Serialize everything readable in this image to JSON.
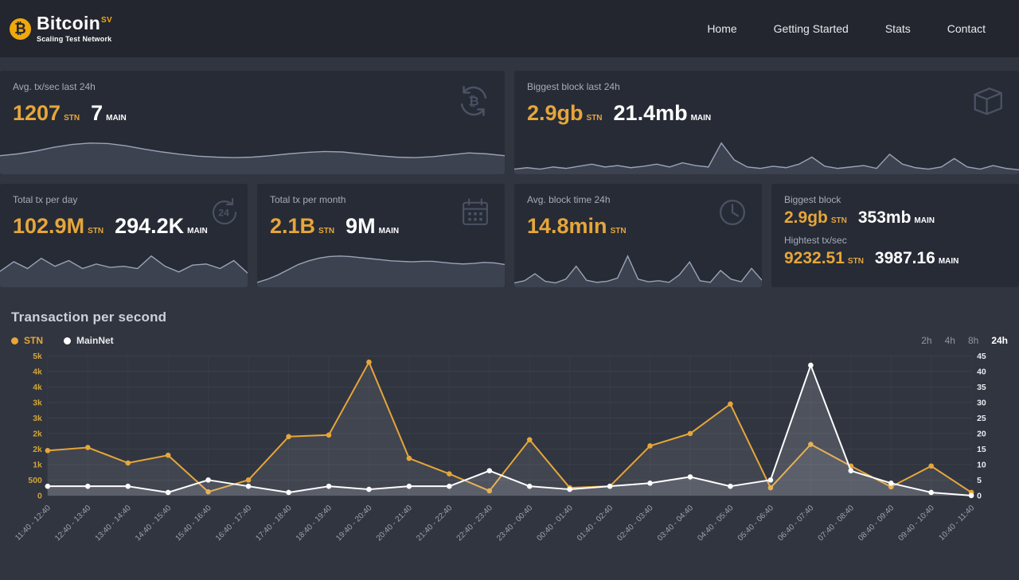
{
  "header": {
    "logo": {
      "coin_symbol": "₿",
      "name": "Bitcoin",
      "sv": "SV",
      "subtitle": "Scaling Test Network"
    },
    "nav": [
      {
        "label": "Home"
      },
      {
        "label": "Getting Started"
      },
      {
        "label": "Stats"
      },
      {
        "label": "Contact"
      }
    ]
  },
  "units": {
    "stn": "STN",
    "main": "MAIN"
  },
  "colors": {
    "accent": "#e6a63a",
    "main_series": "#ffffff",
    "header_bg": "#23262e",
    "page_bg": "#31353f",
    "card_bg": "#262b36",
    "sparkline": "#9aa3b6"
  },
  "cards": {
    "avg_tx_sec": {
      "label": "Avg. tx/sec last 24h",
      "stn_value": "1207",
      "main_value": "7",
      "icon": "refresh-bitcoin-icon",
      "sparkline": [
        36,
        40,
        46,
        54,
        60,
        63,
        62,
        57,
        50,
        44,
        39,
        35,
        33,
        32,
        33,
        36,
        40,
        43,
        45,
        44,
        40,
        36,
        33,
        32,
        34,
        38,
        42,
        40,
        36
      ]
    },
    "biggest_block_24h": {
      "label": "Biggest block last 24h",
      "stn_value": "2.9gb",
      "main_value": "21.4mb",
      "icon": "cube-icon",
      "sparkline": [
        5,
        7,
        5,
        8,
        6,
        9,
        12,
        8,
        10,
        7,
        9,
        12,
        8,
        14,
        10,
        8,
        42,
        18,
        8,
        6,
        9,
        7,
        12,
        22,
        9,
        6,
        8,
        10,
        6,
        26,
        12,
        7,
        5,
        8,
        20,
        8,
        5,
        10,
        6,
        4
      ]
    },
    "total_tx_day": {
      "label": "Total tx per day",
      "stn_value": "102.9M",
      "main_value": "294.2K",
      "icon": "24-hours-icon",
      "sparkline": [
        25,
        42,
        30,
        48,
        34,
        44,
        30,
        38,
        32,
        34,
        30,
        52,
        34,
        24,
        36,
        38,
        30,
        44,
        22
      ]
    },
    "total_tx_month": {
      "label": "Total tx per month",
      "stn_value": "2.1B",
      "main_value": "9M",
      "icon": "calendar-icon",
      "sparkline": [
        6,
        12,
        20,
        30,
        40,
        47,
        52,
        55,
        56,
        55,
        53,
        51,
        49,
        47,
        46,
        45,
        46,
        46,
        44,
        42,
        41,
        42,
        44,
        43,
        40
      ]
    },
    "avg_block_time": {
      "label": "Avg. block time 24h",
      "stn_value": "14.8min",
      "icon": "clock-icon",
      "sparkline": [
        5,
        9,
        22,
        8,
        5,
        12,
        36,
        10,
        6,
        8,
        14,
        55,
        12,
        7,
        9,
        6,
        20,
        44,
        9,
        6,
        28,
        12,
        7,
        32,
        10
      ]
    },
    "biggest_block": {
      "label": "Biggest block",
      "stn_value": "2.9gb",
      "main_value": "353mb"
    },
    "highest_tx_sec": {
      "label": "Hightest tx/sec",
      "stn_value": "9232.51",
      "main_value": "3987.16"
    }
  },
  "chart": {
    "title": "Transaction per second",
    "legend": [
      {
        "label": "STN"
      },
      {
        "label": "MainNet"
      }
    ],
    "ranges": [
      {
        "label": "2h"
      },
      {
        "label": "4h"
      },
      {
        "label": "8h"
      },
      {
        "label": "24h",
        "active": true
      }
    ]
  },
  "chart_data": {
    "type": "line",
    "title": "Transaction per second",
    "x": [
      "11:40 - 12:40",
      "12:40 - 13:40",
      "13:40 - 14:40",
      "14:40 - 15:40",
      "15:40 - 16:40",
      "16:40 - 17:40",
      "17:40 - 18:40",
      "18:40 - 19:40",
      "19:40 - 20:40",
      "20:40 - 21:40",
      "21:40 - 22:40",
      "22:40 - 23:40",
      "23:40 - 00:40",
      "00:40 - 01:40",
      "01:40 - 02:40",
      "02:40 - 03:40",
      "03:40 - 04:40",
      "04:40 - 05:40",
      "05:40 - 06:40",
      "06:40 - 07:40",
      "07:40 - 08:40",
      "08:40 - 09:40",
      "09:40 - 10:40",
      "10:40 - 11:40"
    ],
    "series": [
      {
        "name": "STN",
        "axis": "left",
        "color": "#e6a63a",
        "fill": "rgba(205,212,226,0.10)",
        "values": [
          1450,
          1550,
          1050,
          1300,
          120,
          500,
          1900,
          1950,
          4300,
          1200,
          700,
          150,
          1800,
          250,
          300,
          1600,
          2000,
          2950,
          250,
          1650,
          950,
          280,
          950,
          100
        ]
      },
      {
        "name": "MainNet",
        "axis": "right",
        "color": "#ffffff",
        "fill": "rgba(233,238,246,0.16)",
        "values": [
          3,
          3,
          3,
          1,
          5,
          3,
          1,
          3,
          2,
          3,
          3,
          8,
          3,
          2,
          3,
          4,
          6,
          3,
          5,
          42,
          8,
          4,
          1,
          0
        ]
      }
    ],
    "left_axis": {
      "ticks": [
        "5k",
        "4k",
        "4k",
        "3k",
        "3k",
        "2k",
        "2k",
        "1k",
        "500",
        "0"
      ],
      "max": 4500,
      "min": 0
    },
    "right_axis": {
      "ticks": [
        "45",
        "40",
        "35",
        "30",
        "25",
        "20",
        "15",
        "10",
        "5",
        "0"
      ],
      "max": 45,
      "min": 0
    },
    "grid": true,
    "legend_position": "top-left"
  }
}
